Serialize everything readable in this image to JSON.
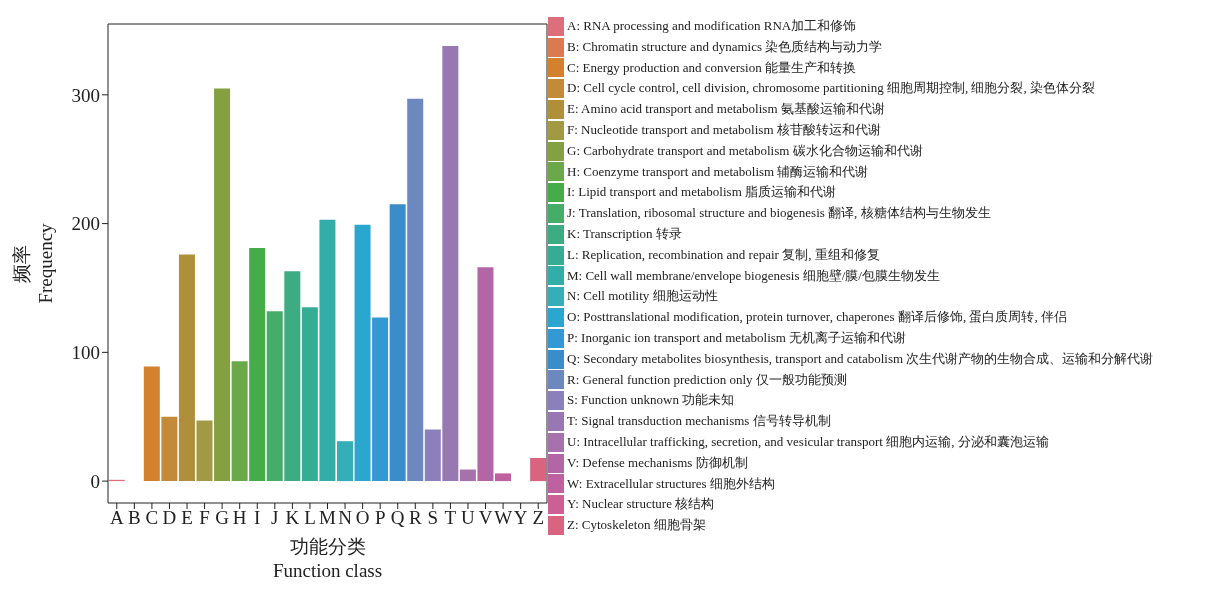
{
  "chart_data": {
    "type": "bar",
    "xlabel": "功能分类\nFunction class",
    "ylabel": "频率\nFrequency",
    "categories": [
      "A",
      "B",
      "C",
      "D",
      "E",
      "F",
      "G",
      "H",
      "I",
      "J",
      "K",
      "L",
      "M",
      "N",
      "O",
      "P",
      "Q",
      "R",
      "S",
      "T",
      "U",
      "V",
      "W",
      "Y",
      "Z"
    ],
    "stacked": true,
    "legend": "right",
    "grid": false,
    "ylim": [
      -17,
      355
    ],
    "yticks": [
      0,
      100,
      200,
      300
    ],
    "series": [
      {
        "name": "A: RNA processing and modification RNA加工和修饰",
        "color": "#dd6e7b",
        "values": [
          1,
          null,
          null,
          null,
          null,
          null,
          null,
          null,
          null,
          null,
          null,
          null,
          null,
          null,
          null,
          null,
          null,
          null,
          null,
          null,
          null,
          null,
          null,
          null,
          null
        ]
      },
      {
        "name": "B: Chromatin structure and dynamics 染色质结构与动力学",
        "color": "#d97a50",
        "values": [
          null,
          0,
          null,
          null,
          null,
          null,
          null,
          null,
          null,
          null,
          null,
          null,
          null,
          null,
          null,
          null,
          null,
          null,
          null,
          null,
          null,
          null,
          null,
          null,
          null
        ]
      },
      {
        "name": "C: Energy production and conversion 能量生产和转换",
        "color": "#d4812e",
        "values": [
          null,
          null,
          89,
          null,
          null,
          null,
          null,
          null,
          null,
          null,
          null,
          null,
          null,
          null,
          null,
          null,
          null,
          null,
          null,
          null,
          null,
          null,
          null,
          null,
          null
        ]
      },
      {
        "name": "D: Cell cycle control, cell division, chromosome partitioning 细胞周期控制, 细胞分裂, 染色体分裂",
        "color": "#c38a3a",
        "values": [
          null,
          null,
          null,
          50,
          null,
          null,
          null,
          null,
          null,
          null,
          null,
          null,
          null,
          null,
          null,
          null,
          null,
          null,
          null,
          null,
          null,
          null,
          null,
          null,
          null
        ]
      },
      {
        "name": "E: Amino acid transport and metabolism 氨基酸运输和代谢",
        "color": "#b08f3a",
        "values": [
          null,
          null,
          null,
          null,
          176,
          null,
          null,
          null,
          null,
          null,
          null,
          null,
          null,
          null,
          null,
          null,
          null,
          null,
          null,
          null,
          null,
          null,
          null,
          null,
          null
        ]
      },
      {
        "name": "F: Nucleotide transport and metabolism 核苷酸转运和代谢",
        "color": "#a19a42",
        "values": [
          null,
          null,
          null,
          null,
          null,
          47,
          null,
          null,
          null,
          null,
          null,
          null,
          null,
          null,
          null,
          null,
          null,
          null,
          null,
          null,
          null,
          null,
          null,
          null,
          null
        ]
      },
      {
        "name": "G: Carbohydrate transport and metabolism 碳水化合物运输和代谢",
        "color": "#84a041",
        "values": [
          null,
          null,
          null,
          null,
          null,
          null,
          305,
          null,
          null,
          null,
          null,
          null,
          null,
          null,
          null,
          null,
          null,
          null,
          null,
          null,
          null,
          null,
          null,
          null,
          null
        ]
      },
      {
        "name": "H: Coenzyme transport and metabolism 辅酶运输和代谢",
        "color": "#6aa84a",
        "values": [
          null,
          null,
          null,
          null,
          null,
          null,
          null,
          93,
          null,
          null,
          null,
          null,
          null,
          null,
          null,
          null,
          null,
          null,
          null,
          null,
          null,
          null,
          null,
          null,
          null
        ]
      },
      {
        "name": "I: Lipid transport and metabolism 脂质运输和代谢",
        "color": "#46ac49",
        "values": [
          null,
          null,
          null,
          null,
          null,
          null,
          null,
          null,
          181,
          null,
          null,
          null,
          null,
          null,
          null,
          null,
          null,
          null,
          null,
          null,
          null,
          null,
          null,
          null,
          null
        ]
      },
      {
        "name": "J: Translation, ribosomal structure and biogenesis 翻译, 核糖体结构与生物发生",
        "color": "#46ac6a",
        "values": [
          null,
          null,
          null,
          null,
          null,
          null,
          null,
          null,
          null,
          132,
          null,
          null,
          null,
          null,
          null,
          null,
          null,
          null,
          null,
          null,
          null,
          null,
          null,
          null,
          null
        ]
      },
      {
        "name": "K: Transcription 转录",
        "color": "#3dac83",
        "values": [
          null,
          null,
          null,
          null,
          null,
          null,
          null,
          null,
          null,
          null,
          163,
          null,
          null,
          null,
          null,
          null,
          null,
          null,
          null,
          null,
          null,
          null,
          null,
          null,
          null
        ]
      },
      {
        "name": "L: Replication, recombination and repair 复制, 重组和修复",
        "color": "#36ac95",
        "values": [
          null,
          null,
          null,
          null,
          null,
          null,
          null,
          null,
          null,
          null,
          null,
          135,
          null,
          null,
          null,
          null,
          null,
          null,
          null,
          null,
          null,
          null,
          null,
          null,
          null
        ]
      },
      {
        "name": "M: Cell wall membrane/envelope biogenesis 细胞壁/膜/包膜生物发生",
        "color": "#33ada7",
        "values": [
          null,
          null,
          null,
          null,
          null,
          null,
          null,
          null,
          null,
          null,
          null,
          null,
          203,
          null,
          null,
          null,
          null,
          null,
          null,
          null,
          null,
          null,
          null,
          null,
          null
        ]
      },
      {
        "name": "N: Cell motility 细胞运动性",
        "color": "#35aeb8",
        "values": [
          null,
          null,
          null,
          null,
          null,
          null,
          null,
          null,
          null,
          null,
          null,
          null,
          null,
          31,
          null,
          null,
          null,
          null,
          null,
          null,
          null,
          null,
          null,
          null,
          null
        ]
      },
      {
        "name": "O: Posttranslational modification, protein turnover, chaperones 翻译后修饰, 蛋白质周转, 伴侣",
        "color": "#2aa6cf",
        "values": [
          null,
          null,
          null,
          null,
          null,
          null,
          null,
          null,
          null,
          null,
          null,
          null,
          null,
          null,
          199,
          null,
          null,
          null,
          null,
          null,
          null,
          null,
          null,
          null,
          null
        ]
      },
      {
        "name": "P: Inorganic ion transport and metabolism 无机离子运输和代谢",
        "color": "#3499d2",
        "values": [
          null,
          null,
          null,
          null,
          null,
          null,
          null,
          null,
          null,
          null,
          null,
          null,
          null,
          null,
          null,
          127,
          null,
          null,
          null,
          null,
          null,
          null,
          null,
          null,
          null
        ]
      },
      {
        "name": "Q: Secondary metabolites biosynthesis, transport and catabolism 次生代谢产物的生物合成、运输和分解代谢",
        "color": "#3a8dc8",
        "values": [
          null,
          null,
          null,
          null,
          null,
          null,
          null,
          null,
          null,
          null,
          null,
          null,
          null,
          null,
          null,
          null,
          215,
          null,
          null,
          null,
          null,
          null,
          null,
          null,
          null
        ]
      },
      {
        "name": "R: General function prediction only 仅一般功能预测",
        "color": "#6d87bf",
        "values": [
          null,
          null,
          null,
          null,
          null,
          null,
          null,
          null,
          null,
          null,
          null,
          null,
          null,
          null,
          null,
          null,
          null,
          297,
          null,
          null,
          null,
          null,
          null,
          null,
          null
        ]
      },
      {
        "name": "S: Function unknown 功能未知",
        "color": "#8b80b9",
        "values": [
          null,
          null,
          null,
          null,
          null,
          null,
          null,
          null,
          null,
          null,
          null,
          null,
          null,
          null,
          null,
          null,
          null,
          null,
          40,
          null,
          null,
          null,
          null,
          null,
          null
        ]
      },
      {
        "name": "T: Signal transduction mechanisms 信号转导机制",
        "color": "#9878b2",
        "values": [
          null,
          null,
          null,
          null,
          null,
          null,
          null,
          null,
          null,
          null,
          null,
          null,
          null,
          null,
          null,
          null,
          null,
          null,
          null,
          338,
          null,
          null,
          null,
          null,
          null
        ]
      },
      {
        "name": "U: Intracellular trafficking, secretion, and vesicular transport 细胞内运输, 分泌和囊泡运输",
        "color": "#a572ac",
        "values": [
          null,
          null,
          null,
          null,
          null,
          null,
          null,
          null,
          null,
          null,
          null,
          null,
          null,
          null,
          null,
          null,
          null,
          null,
          null,
          null,
          9,
          null,
          null,
          null,
          null
        ]
      },
      {
        "name": "V: Defense mechanisms 防御机制",
        "color": "#b366a5",
        "values": [
          null,
          null,
          null,
          null,
          null,
          null,
          null,
          null,
          null,
          null,
          null,
          null,
          null,
          null,
          null,
          null,
          null,
          null,
          null,
          null,
          null,
          166,
          null,
          null,
          null
        ]
      },
      {
        "name": "W: Extracellular structures 细胞外结构",
        "color": "#c0619f",
        "values": [
          null,
          null,
          null,
          null,
          null,
          null,
          null,
          null,
          null,
          null,
          null,
          null,
          null,
          null,
          null,
          null,
          null,
          null,
          null,
          null,
          null,
          null,
          6,
          null,
          null
        ]
      },
      {
        "name": "Y: Nuclear structure 核结构",
        "color": "#cc5f93",
        "values": [
          null,
          null,
          null,
          null,
          null,
          null,
          null,
          null,
          null,
          null,
          null,
          null,
          null,
          null,
          null,
          null,
          null,
          null,
          null,
          null,
          null,
          null,
          null,
          0,
          null
        ]
      },
      {
        "name": "Z: Cytoskeleton 细胞骨架",
        "color": "#d9647f",
        "values": [
          null,
          null,
          null,
          null,
          null,
          null,
          null,
          null,
          null,
          null,
          null,
          null,
          null,
          null,
          null,
          null,
          null,
          null,
          null,
          null,
          null,
          null,
          null,
          null,
          18
        ]
      }
    ]
  }
}
